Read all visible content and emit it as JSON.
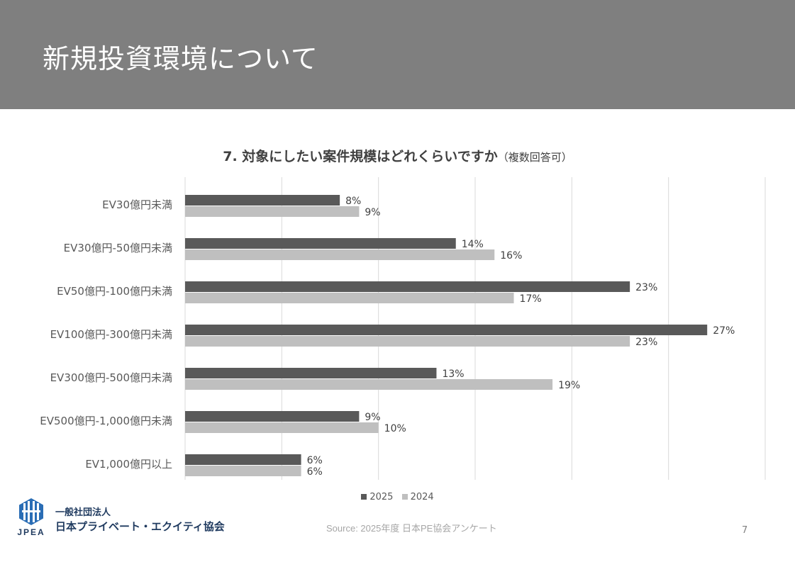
{
  "header": {
    "title": "新規投資環境について"
  },
  "chart_data": {
    "type": "bar",
    "orientation": "horizontal",
    "title": "7. 対象にしたい案件規模はどれくらいですか",
    "subtitle": "（複数回答可）",
    "categories": [
      "EV30億円未満",
      "EV30億円-50億円未満",
      "EV50億円-100億円未満",
      "EV100億円-300億円未満",
      "EV300億円-500億円未満",
      "EV500億円-1,000億円未満",
      "EV1,000億円以上"
    ],
    "series": [
      {
        "name": "2025",
        "color": "#595959",
        "values": [
          8,
          14,
          23,
          27,
          13,
          9,
          6
        ]
      },
      {
        "name": "2024",
        "color": "#bfbfbf",
        "values": [
          9,
          16,
          17,
          23,
          19,
          10,
          6
        ]
      }
    ],
    "value_suffix": "%",
    "xlim": [
      0,
      30
    ],
    "grid": true,
    "legend_position": "bottom"
  },
  "legend": {
    "items": [
      "2025",
      "2024"
    ]
  },
  "footer": {
    "org_line1": "一般社団法人",
    "org_line2": "日本プライベート・エクイティ協会",
    "logo_text": "JPEA",
    "source": "Source: 2025年度 日本PE協会アンケート",
    "page_number": "7"
  }
}
